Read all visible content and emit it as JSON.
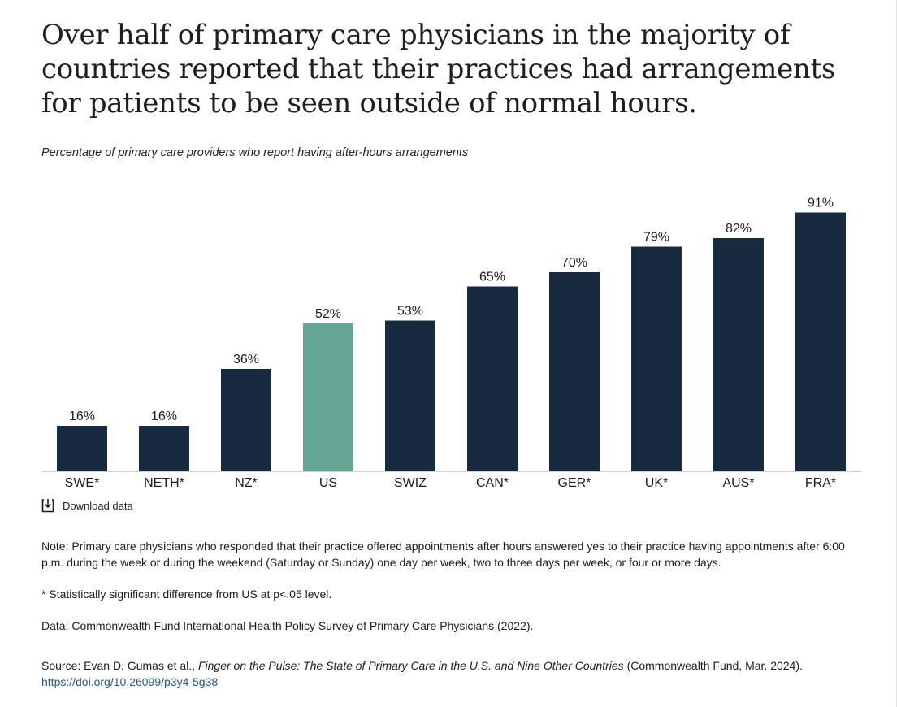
{
  "header": {
    "title": "Over half of primary care physicians in the majority of countries reported that their practices had arrangements for patients to be seen outside of normal hours.",
    "subtitle": "Percentage of primary care providers who report having after-hours arrangements"
  },
  "chart_data": {
    "type": "bar",
    "title": "Over half of primary care physicians in the majority of countries reported that their practices had arrangements for patients to be seen outside of normal hours.",
    "subtitle": "Percentage of primary care providers who report having after-hours arrangements",
    "categories": [
      "SWE*",
      "NETH*",
      "NZ*",
      "US",
      "SWIZ",
      "CAN*",
      "GER*",
      "UK*",
      "AUS*",
      "FRA*"
    ],
    "values": [
      16,
      16,
      36,
      52,
      53,
      65,
      70,
      79,
      82,
      91
    ],
    "value_labels": [
      "16%",
      "16%",
      "36%",
      "52%",
      "53%",
      "65%",
      "70%",
      "79%",
      "82%",
      "91%"
    ],
    "highlight": "US",
    "colors": {
      "default": "#172a40",
      "highlight": "#65a593"
    },
    "ylim": [
      0,
      100
    ],
    "grid": false,
    "xlabel": "",
    "ylabel": ""
  },
  "download": {
    "label": "Download data",
    "icon": "download-icon"
  },
  "notes": {
    "note": "Note: Primary care physicians who responded that their practice offered appointments after hours answered yes to their practice having appointments after 6:00 p.m. during the week or during the weekend (Saturday or Sunday) one day per week, two to three days per week, or four or more days.",
    "significance": "* Statistically significant difference from US at p<.05 level.",
    "data": "Data: Commonwealth Fund International Health Policy Survey of Primary Care Physicians (2022)."
  },
  "source": {
    "prefix": "Source: Evan D. Gumas et al., ",
    "title": "Finger on the Pulse: The State of Primary Care in the U.S. and Nine Other Countries",
    "suffix": " (Commonwealth Fund, Mar. 2024). ",
    "link": "https://doi.org/10.26099/p3y4-5g38"
  }
}
